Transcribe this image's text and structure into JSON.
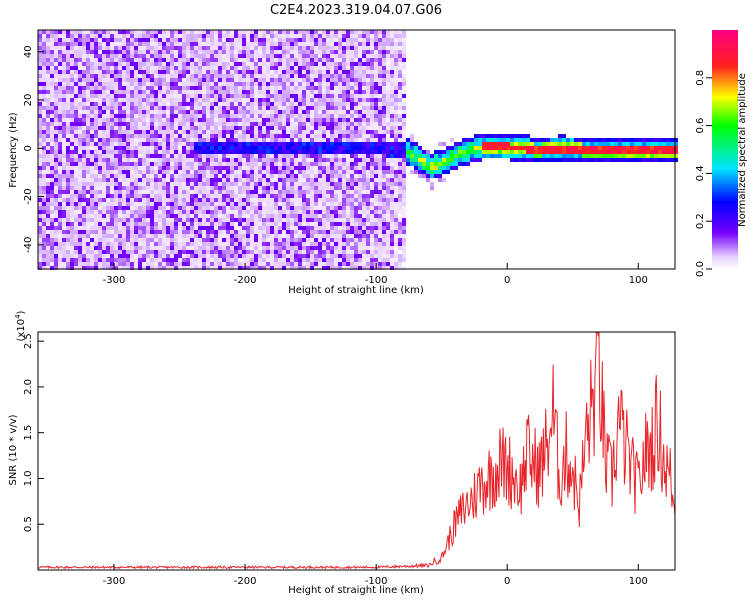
{
  "title": "C2E4.2023.319.04.07.G06",
  "chart_data": [
    {
      "type": "heatmap",
      "xlabel": "Height of straight line (km)",
      "ylabel": "Frequency (Hz)",
      "xlim": [
        -358,
        128
      ],
      "ylim": [
        -50,
        49
      ],
      "xticks": [
        -300,
        -200,
        -100,
        0,
        100
      ],
      "yticks": [
        -40,
        -20,
        0,
        20,
        40
      ],
      "colorbar": {
        "label": "Normalized spectral amplitude",
        "range": [
          0.0,
          1.0
        ],
        "ticks": [
          "0.0",
          "0.2",
          "0.4",
          "0.6",
          "0.8"
        ]
      },
      "signal_trace": {
        "x": [
          -100,
          -80,
          -70,
          -60,
          -50,
          -40,
          -30,
          -20,
          -10,
          0,
          20,
          40,
          60,
          80,
          100,
          128
        ],
        "y": [
          1,
          0,
          -3,
          -7,
          -5,
          -2,
          0,
          1.5,
          1.5,
          1.5,
          0,
          0.5,
          0,
          0,
          0,
          0
        ]
      }
    },
    {
      "type": "line",
      "xlabel": "Height of straight line (km)",
      "ylabel": "SNR (10 * v/v)",
      "scale_label": "(x10",
      "scale_exponent": "4",
      "scale_close": ")",
      "xlim": [
        -358,
        128
      ],
      "ylim": [
        0,
        2.6
      ],
      "xticks": [
        -300,
        -200,
        -100,
        0,
        100
      ],
      "yticks": [
        "0.5",
        "1.0",
        "1.5",
        "2.0",
        "2.5"
      ],
      "series": [
        {
          "color": "#e8242a",
          "x": [
            -358,
            -300,
            -200,
            -100,
            -60,
            -50,
            -45,
            -40,
            -35,
            -30,
            -25,
            -20,
            -15,
            -10,
            -5,
            0,
            5,
            10,
            15,
            20,
            25,
            30,
            35,
            40,
            45,
            50,
            55,
            60,
            65,
            70,
            75,
            80,
            85,
            90,
            95,
            100,
            105,
            110,
            115,
            120,
            125,
            128
          ],
          "y": [
            0.03,
            0.03,
            0.03,
            0.03,
            0.05,
            0.15,
            0.35,
            0.55,
            0.7,
            0.8,
            0.9,
            1.05,
            1.1,
            1.2,
            1.3,
            1.25,
            1.15,
            1.0,
            1.4,
            1.3,
            1.2,
            1.5,
            1.9,
            1.1,
            1.4,
            1.2,
            0.8,
            1.6,
            2.0,
            2.5,
            1.3,
            1.1,
            1.8,
            1.5,
            1.2,
            1.0,
            1.4,
            1.5,
            1.8,
            1.3,
            1.1,
            0.6
          ]
        }
      ]
    }
  ]
}
